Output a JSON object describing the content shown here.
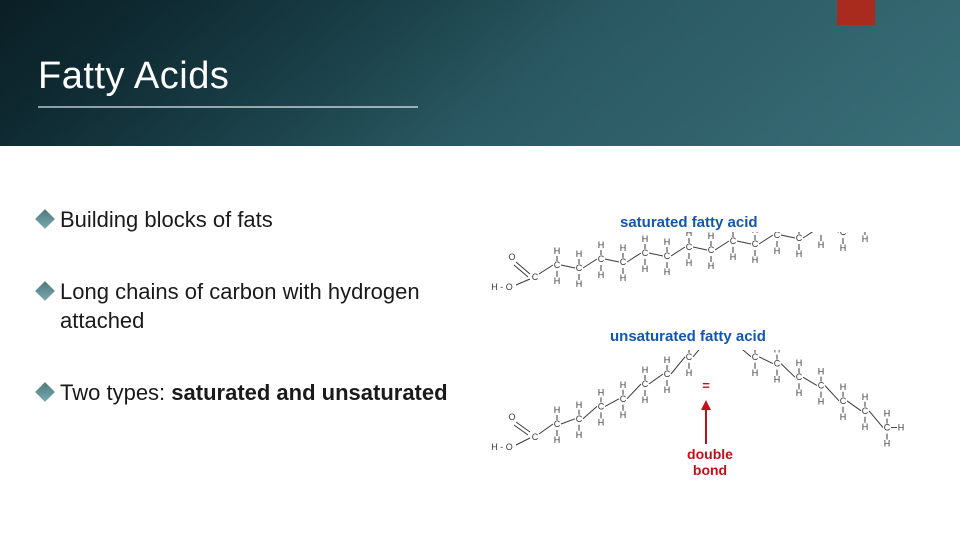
{
  "slide": {
    "title": "Fatty Acids",
    "accent_color": "#a82b1e",
    "header_gradient_from": "#0a1f25",
    "header_gradient_to": "#396f78",
    "bullets": [
      {
        "prefix": "Building",
        "rest": " blocks of fats",
        "bold": ""
      },
      {
        "prefix": "Long",
        "rest": " chains of carbon with hydrogen attached",
        "bold": ""
      },
      {
        "prefix": "Two",
        "rest": " types: ",
        "bold": "saturated and unsaturated"
      }
    ]
  },
  "diagram": {
    "saturated_label": "saturated fatty acid",
    "unsaturated_label": "unsaturated fatty acid",
    "double_bond_label": "double\nbond",
    "label_color": "#1256b0",
    "annot_color": "#c2101a",
    "atom_font_size": 9,
    "atom_color": "#3a3a3a"
  }
}
